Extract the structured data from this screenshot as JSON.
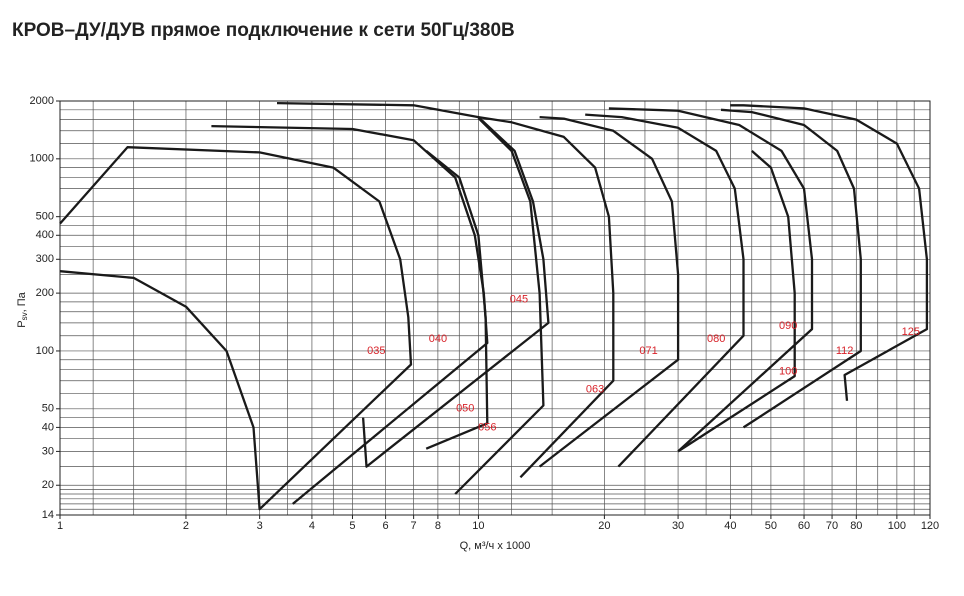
{
  "chart_data": {
    "type": "line",
    "title": "КРОВ–ДУ/ДУВ прямое подключение к сети 50Гц/380В",
    "xlabel": "Q, м³/ч x 1000",
    "ylabel": {
      "main": "P",
      "sub": "sv",
      "unit": ", Па"
    },
    "xscale": "log",
    "yscale": "log",
    "xlim": [
      1,
      120
    ],
    "ylim": [
      14,
      2000
    ],
    "xticks": [
      1,
      2,
      3,
      4,
      5,
      6,
      7,
      8,
      10,
      20,
      30,
      40,
      50,
      60,
      70,
      80,
      100,
      120
    ],
    "yticks": [
      14,
      20,
      30,
      40,
      50,
      100,
      200,
      300,
      400,
      500,
      1000,
      2000
    ],
    "xgrid": [
      1.2,
      1.5,
      2,
      2.5,
      3,
      3.5,
      4,
      4.5,
      5,
      6,
      7,
      8,
      9,
      10,
      12,
      15,
      20,
      25,
      30,
      35,
      40,
      45,
      50,
      60,
      70,
      80,
      90,
      100,
      110,
      120
    ],
    "ygrid": [
      14,
      15,
      16,
      17,
      18,
      19,
      20,
      25,
      30,
      35,
      40,
      45,
      50,
      60,
      70,
      80,
      90,
      100,
      120,
      140,
      160,
      180,
      200,
      250,
      300,
      350,
      400,
      450,
      500,
      600,
      700,
      800,
      900,
      1000,
      1200,
      1400,
      1600,
      1800,
      2000
    ],
    "grid": true,
    "line_color": "#1a1a1a",
    "label_color": "#d8232a",
    "series": [
      {
        "x": [
          1,
          1.45,
          3,
          4.5,
          5.8,
          6.5,
          6.8,
          6.9,
          3,
          2.9,
          2.5,
          2,
          1.5,
          1
        ],
        "values": [
          460,
          1150,
          1080,
          900,
          600,
          300,
          150,
          85,
          15,
          40,
          100,
          170,
          240,
          260
        ]
      },
      {
        "x": [
          2.3,
          5,
          7,
          8.8,
          9.8,
          10.3,
          10.5,
          3.6
        ],
        "values": [
          1480,
          1430,
          1250,
          800,
          400,
          200,
          110,
          16
        ]
      },
      {
        "x": [
          3.3,
          7,
          10,
          12.2,
          13.5,
          14.3,
          14.7,
          5.4,
          5.3
        ],
        "values": [
          1950,
          1900,
          1650,
          1100,
          600,
          300,
          140,
          25,
          45
        ]
      },
      {
        "x": [
          7.5,
          10.5,
          10.4,
          10,
          9,
          7.5
        ],
        "values": [
          31,
          42,
          150,
          400,
          800,
          1100
        ]
      },
      {
        "x": [
          8.8,
          14.3,
          14,
          13.3,
          12,
          10
        ],
        "values": [
          18,
          52,
          200,
          600,
          1100,
          1630
        ]
      },
      {
        "x": [
          12.6,
          21,
          21,
          20.5,
          19,
          16,
          12,
          10
        ],
        "values": [
          22,
          70,
          200,
          500,
          900,
          1300,
          1550,
          1650
        ]
      },
      {
        "x": [
          14,
          30,
          30,
          29,
          26,
          21,
          16,
          14
        ],
        "values": [
          25,
          90,
          250,
          600,
          1000,
          1400,
          1620,
          1650
        ]
      },
      {
        "x": [
          21.6,
          43,
          43,
          41,
          37,
          30,
          22,
          18
        ],
        "values": [
          25,
          120,
          300,
          700,
          1100,
          1450,
          1650,
          1700
        ]
      },
      {
        "x": [
          30,
          62.7,
          62.7,
          60,
          53,
          42,
          30,
          20.5
        ],
        "values": [
          30,
          130,
          300,
          700,
          1100,
          1500,
          1780,
          1830
        ]
      },
      {
        "x": [
          30,
          57,
          57,
          55,
          50,
          45
        ],
        "values": [
          30,
          74,
          200,
          500,
          900,
          1100
        ]
      },
      {
        "x": [
          43,
          82,
          82,
          79,
          72,
          60,
          45,
          38
        ],
        "values": [
          40,
          100,
          300,
          700,
          1100,
          1500,
          1750,
          1800
        ]
      },
      {
        "x": [
          76,
          75,
          118,
          118,
          113,
          100,
          80,
          60,
          43,
          40
        ],
        "values": [
          55,
          75,
          130,
          300,
          700,
          1200,
          1600,
          1830,
          1900,
          1900
        ]
      }
    ],
    "annotations": [
      {
        "text": "035",
        "x": 5.7,
        "y": 100
      },
      {
        "text": "040",
        "x": 8,
        "y": 115
      },
      {
        "text": "045",
        "x": 12.5,
        "y": 185
      },
      {
        "text": "050",
        "x": 9.3,
        "y": 50
      },
      {
        "text": "056",
        "x": 10.5,
        "y": 40
      },
      {
        "text": "063",
        "x": 19,
        "y": 63
      },
      {
        "text": "071",
        "x": 25.5,
        "y": 100
      },
      {
        "text": "080",
        "x": 37,
        "y": 115
      },
      {
        "text": "090",
        "x": 55,
        "y": 135
      },
      {
        "text": "100",
        "x": 55,
        "y": 78
      },
      {
        "text": "112",
        "x": 75,
        "y": 100
      },
      {
        "text": "125",
        "x": 108,
        "y": 125
      }
    ]
  }
}
